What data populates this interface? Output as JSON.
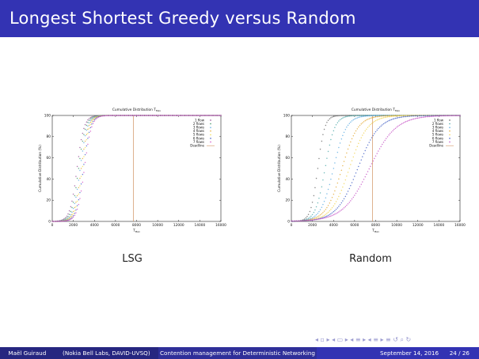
{
  "slide": {
    "title": "Longest Shortest Greedy versus Random"
  },
  "charts": [
    {
      "id": "lsg",
      "caption": "LSG",
      "title": "Cumulative Distribution T",
      "title_sub": "Max",
      "xlabel": "T",
      "xlabel_sub": "Max",
      "ylabel": "Cumulative Distribution (%)",
      "deadline_label": "Deadline"
    },
    {
      "id": "random",
      "caption": "Random",
      "title": "Cumulative Distribution T",
      "title_sub": "Max",
      "xlabel": "T",
      "xlabel_sub": "Max",
      "ylabel": "Cumulative Distribution (%)",
      "deadline_label": "Deadline"
    }
  ],
  "chart_data": [
    {
      "type": "line",
      "title": "Cumulative Distribution T_Max",
      "xlabel": "T_Max",
      "ylabel": "Cumulative Distribution (%)",
      "xlim": [
        0,
        16000
      ],
      "ylim": [
        0,
        100
      ],
      "xticks": [
        0,
        2000,
        4000,
        6000,
        8000,
        10000,
        12000,
        14000,
        16000
      ],
      "yticks": [
        0,
        20,
        40,
        60,
        80,
        100
      ],
      "deadline": 7700,
      "legend_position": "top-right",
      "series": [
        {
          "name": "1 flow",
          "color": "#8b3a8b",
          "midpoint": 2350,
          "spread": 330
        },
        {
          "name": "2 flows",
          "color": "#2e8b57",
          "midpoint": 2500,
          "spread": 330
        },
        {
          "name": "3 flows",
          "color": "#4aa3df",
          "midpoint": 2650,
          "spread": 330
        },
        {
          "name": "4 flows",
          "color": "#e0a020",
          "midpoint": 2750,
          "spread": 330
        },
        {
          "name": "5 flows",
          "color": "#f0e040",
          "midpoint": 2850,
          "spread": 330
        },
        {
          "name": "6 flows",
          "color": "#3050c0",
          "midpoint": 2950,
          "spread": 330
        },
        {
          "name": "7 flows",
          "color": "#d040c0",
          "midpoint": 3050,
          "spread": 330
        },
        {
          "name": "Deadline",
          "color": "#d09060",
          "midpoint": null,
          "spread": null
        }
      ]
    },
    {
      "type": "line",
      "title": "Cumulative Distribution T_Max",
      "xlabel": "T_Max",
      "ylabel": "Cumulative Distribution (%)",
      "xlim": [
        0,
        16000
      ],
      "ylim": [
        0,
        100
      ],
      "xticks": [
        0,
        2000,
        4000,
        6000,
        8000,
        10000,
        12000,
        14000,
        16000
      ],
      "yticks": [
        0,
        20,
        40,
        60,
        80,
        100
      ],
      "deadline": 7700,
      "legend_position": "top-right",
      "series": [
        {
          "name": "1 flow",
          "color": "#555555",
          "midpoint": 2500,
          "spread": 330
        },
        {
          "name": "2 flows",
          "color": "#3aa0a0",
          "midpoint": 3200,
          "spread": 450
        },
        {
          "name": "3 flows",
          "color": "#4aa3df",
          "midpoint": 4000,
          "spread": 600
        },
        {
          "name": "4 flows",
          "color": "#e0a020",
          "midpoint": 4800,
          "spread": 750
        },
        {
          "name": "5 flows",
          "color": "#f0d040",
          "midpoint": 5500,
          "spread": 850
        },
        {
          "name": "6 flows",
          "color": "#3050c0",
          "midpoint": 6300,
          "spread": 1000
        },
        {
          "name": "7 flows",
          "color": "#c040c0",
          "midpoint": 7400,
          "spread": 1250
        },
        {
          "name": "Deadline",
          "color": "#d09060",
          "midpoint": null,
          "spread": null
        }
      ]
    }
  ],
  "nav": {
    "symbols": "◂ ▫ ▸   ◂ ▭ ▸   ◂ ≡ ▸   ◂ ≡ ▸   ≡   ↺ ⌕ ↻"
  },
  "footer": {
    "author": "Maël Guiraud",
    "affiliation": "(Nokia Bell Labs, DAVID-UVSQ)",
    "talk_title": "Contention management for Deterministic Networking",
    "date": "September 14, 2016",
    "page": "24 / 26"
  }
}
